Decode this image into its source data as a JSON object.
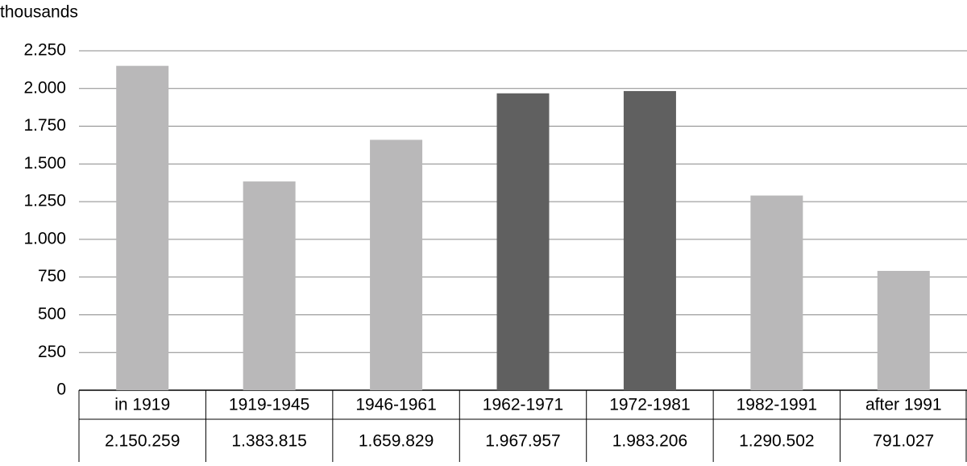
{
  "chart_data": {
    "type": "bar",
    "y_label": "thousands",
    "categories": [
      "in 1919",
      "1919-1945",
      "1946-1961",
      "1962-1971",
      "1972-1981",
      "1982-1991",
      "after 1991"
    ],
    "values": [
      2150.259,
      1383.815,
      1659.829,
      1967.957,
      1983.206,
      1290.502,
      791.027
    ],
    "value_labels": [
      "2.150.259",
      "1.383.815",
      "1.659.829",
      "1.967.957",
      "1.983.206",
      "1.290.502",
      "791.027"
    ],
    "colors": [
      "#b9b8b9",
      "#b9b8b9",
      "#b9b8b9",
      "#606060",
      "#606060",
      "#b9b8b9",
      "#b9b8b9"
    ],
    "ylim": [
      0,
      2250
    ],
    "yticks": [
      0,
      250,
      500,
      750,
      {
        "value": 1000,
        "label": "1.000"
      },
      {
        "value": 1250,
        "label": "1.250"
      },
      {
        "value": 1500,
        "label": "1.500"
      },
      {
        "value": 1750,
        "label": "1.750"
      },
      {
        "value": 2000,
        "label": "2.000"
      },
      {
        "value": 2250,
        "label": "2.250"
      }
    ],
    "grid": true
  }
}
